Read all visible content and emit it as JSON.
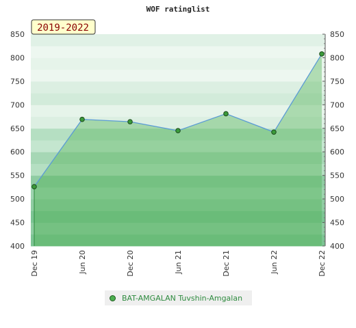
{
  "chart_data": {
    "type": "area",
    "title": "WOF ratinglist",
    "badge": "2019-2022",
    "x_ticks": [
      "Dec 19",
      "Jun 20",
      "Dec 20",
      "Jun 21",
      "Dec 21",
      "Jun 22",
      "Dec 22"
    ],
    "y_ticks": [
      "400",
      "450",
      "500",
      "550",
      "600",
      "650",
      "700",
      "750",
      "800",
      "850"
    ],
    "ylim": [
      400,
      850
    ],
    "series": [
      {
        "name": "BAT-AMGALAN Tuvshin-Amgalan",
        "points": [
          {
            "x": "Dec 19",
            "y": 526
          },
          {
            "x": "Jun 20",
            "y": 669
          },
          {
            "x": "Dec 20",
            "y": 664
          },
          {
            "x": "Jun 21",
            "y": 645
          },
          {
            "x": "Dec 21",
            "y": 681
          },
          {
            "x": "Jun 22",
            "y": 642
          },
          {
            "x": "Dec 22",
            "y": 808
          }
        ]
      }
    ],
    "legend_position": "bottom-center",
    "colors": {
      "line": "#5b9bd5",
      "fill": "#4caf50",
      "marker": "#3a9a3a"
    }
  }
}
